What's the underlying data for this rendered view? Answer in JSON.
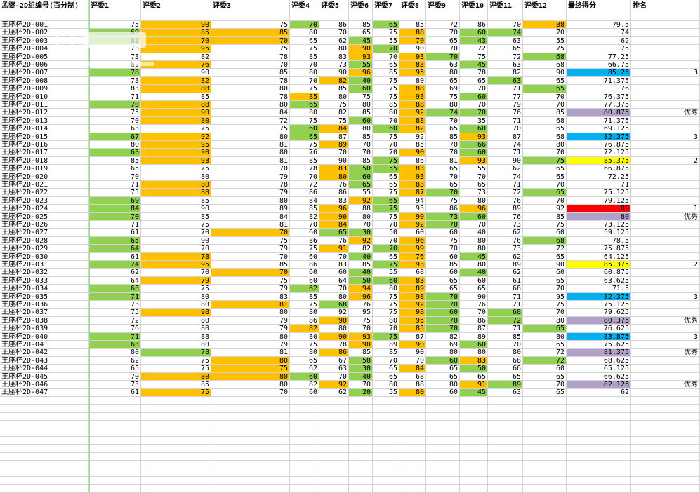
{
  "colors": {
    "orange": "#ffc000",
    "green": "#92d050",
    "blue": "#00b0f0",
    "purple": "#b1a0c7",
    "yellow": "#ffff00",
    "red": "#ff0000",
    "grid": "#d4d4d4"
  },
  "columns": [
    "孟婆-2D组编号(百分制)",
    "评委1",
    "评委2",
    "评委3",
    "评委4",
    "评委5",
    "评委6",
    "评委7",
    "评委8",
    "评委9",
    "评委10",
    "评委11",
    "评委12",
    "最终得分",
    "排名"
  ],
  "rows": [
    {
      "id": "王座杯2D-001",
      "s": [
        75,
        90,
        75,
        70,
        86,
        85,
        65,
        85,
        72,
        86,
        70,
        88
      ],
      "final": "79.5",
      "rank": "",
      "c": {
        "2": "o",
        "4": "g",
        "7": "g",
        "12": "o"
      }
    },
    {
      "id": "王座杯2D-002",
      "s": [
        69,
        85,
        85,
        80,
        70,
        65,
        75,
        88,
        70,
        60,
        74,
        70
      ],
      "final": "74",
      "rank": "",
      "c": {
        "1": "g",
        "2": "o",
        "3": "o",
        "8": "o",
        "10": "g",
        "11": "g"
      }
    },
    {
      "id": "王座杯2D-003",
      "s": [
        68,
        70,
        70,
        65,
        62,
        45,
        55,
        70,
        65,
        43,
        63,
        55
      ],
      "final": "62",
      "rank": "",
      "c": {
        "1": "g",
        "2": "o",
        "3": "o",
        "6": "g",
        "8": "o",
        "10": "g"
      }
    },
    {
      "id": "王座杯2D-004",
      "s": [
        73,
        95,
        75,
        75,
        80,
        90,
        70,
        90,
        70,
        72,
        65,
        75
      ],
      "final": "75",
      "rank": "",
      "c": {
        "2": "o",
        "6": "o",
        "7": "g"
      }
    },
    {
      "id": "王座杯2D-005",
      "s": [
        73,
        82,
        78,
        85,
        83,
        93,
        70,
        93,
        70,
        75,
        72,
        68
      ],
      "final": "77.25",
      "rank": "",
      "c": {
        "6": "o",
        "8": "o",
        "9": "g",
        "12": "g"
      }
    },
    {
      "id": "王座杯2D-006",
      "s": [
        62,
        76,
        70,
        70,
        73,
        55,
        65,
        83,
        63,
        45,
        63,
        68
      ],
      "final": "66.75",
      "rank": "",
      "c": {
        "2": "o",
        "6": "g",
        "8": "o",
        "10": "g"
      }
    },
    {
      "id": "王座杯2D-007",
      "s": [
        78,
        90,
        85,
        80,
        90,
        96,
        85,
        95,
        80,
        78,
        82,
        90
      ],
      "final": "85.25",
      "rank": "3",
      "c": {
        "1": "g",
        "6": "o",
        "8": "o",
        "13": "b"
      }
    },
    {
      "id": "王座杯2D-008",
      "s": [
        73,
        82,
        78,
        70,
        82,
        40,
        75,
        80,
        65,
        65,
        63,
        65
      ],
      "final": "71.375",
      "rank": "",
      "c": {
        "2": "o",
        "5": "o",
        "6": "g",
        "11": "g"
      }
    },
    {
      "id": "王座杯2D-009",
      "s": [
        83,
        88,
        80,
        75,
        85,
        60,
        75,
        88,
        69,
        70,
        71,
        65
      ],
      "final": "76",
      "rank": "",
      "c": {
        "2": "o",
        "6": "g",
        "8": "o",
        "12": "g"
      }
    },
    {
      "id": "王座杯2D-010",
      "s": [
        71,
        85,
        78,
        85,
        80,
        75,
        75,
        93,
        75,
        60,
        77,
        70
      ],
      "final": "76.375",
      "rank": "",
      "c": {
        "4": "o",
        "8": "o",
        "10": "g"
      }
    },
    {
      "id": "王座杯2D-011",
      "s": [
        70,
        88,
        80,
        65,
        75,
        80,
        85,
        88,
        80,
        70,
        79,
        70
      ],
      "final": "77.375",
      "rank": "",
      "c": {
        "1": "g",
        "2": "o",
        "4": "g",
        "8": "o"
      }
    },
    {
      "id": "王座杯2D-012",
      "s": [
        75,
        90,
        84,
        80,
        82,
        85,
        80,
        92,
        74,
        70,
        76,
        85
      ],
      "final": "80.875",
      "rank": "优秀",
      "c": {
        "2": "o",
        "8": "o",
        "9": "g",
        "10": "g",
        "13": "p"
      }
    },
    {
      "id": "王座杯2D-013",
      "s": [
        70,
        80,
        72,
        75,
        75,
        60,
        70,
        88,
        70,
        35,
        71,
        68
      ],
      "final": "71.375",
      "rank": "",
      "c": {
        "2": "o",
        "6": "g",
        "8": "o"
      }
    },
    {
      "id": "王座杯2D-014",
      "s": [
        63,
        75,
        75,
        60,
        84,
        80,
        60,
        82,
        65,
        60,
        70,
        65
      ],
      "final": "69.125",
      "rank": "",
      "c": {
        "4": "g",
        "5": "o",
        "7": "g",
        "8": "o",
        "10": "g"
      }
    },
    {
      "id": "王座杯2D-015",
      "s": [
        67,
        92,
        80,
        65,
        87,
        85,
        75,
        92,
        85,
        93,
        87,
        68
      ],
      "final": "82.375",
      "rank": "3",
      "c": {
        "1": "g",
        "2": "o",
        "4": "g",
        "10": "o",
        "13": "b"
      }
    },
    {
      "id": "王座杯2D-016",
      "s": [
        80,
        95,
        81,
        75,
        89,
        70,
        70,
        85,
        70,
        66,
        74,
        80
      ],
      "final": "76.875",
      "rank": "",
      "c": {
        "2": "o",
        "5": "o",
        "10": "g"
      }
    },
    {
      "id": "王座杯2D-017",
      "s": [
        63,
        90,
        80,
        76,
        70,
        70,
        70,
        90,
        70,
        60,
        71,
        70
      ],
      "final": "72.125",
      "rank": "",
      "c": {
        "1": "g",
        "2": "o",
        "8": "o",
        "10": "g"
      }
    },
    {
      "id": "王座杯2D-018",
      "s": [
        85,
        93,
        81,
        85,
        90,
        85,
        75,
        86,
        81,
        93,
        90,
        75
      ],
      "final": "85.375",
      "rank": "2",
      "c": {
        "2": "o",
        "7": "g",
        "10": "o",
        "12": "g",
        "13": "y"
      }
    },
    {
      "id": "王座杯2D-019",
      "s": [
        65,
        75,
        70,
        78,
        83,
        50,
        55,
        83,
        65,
        55,
        62,
        65
      ],
      "final": "66.875",
      "rank": "",
      "c": {
        "5": "o",
        "6": "g",
        "7": "g",
        "8": "o"
      }
    },
    {
      "id": "王座杯2D-020",
      "s": [
        70,
        80,
        79,
        70,
        80,
        60,
        65,
        93,
        70,
        70,
        74,
        65
      ],
      "final": "72.25",
      "rank": "",
      "c": {
        "5": "o",
        "6": "g",
        "8": "o"
      }
    },
    {
      "id": "王座杯2D-021",
      "s": [
        71,
        80,
        78,
        72,
        76,
        65,
        65,
        83,
        65,
        65,
        71,
        70
      ],
      "final": "71",
      "rank": "",
      "c": {
        "2": "o",
        "6": "g",
        "8": "o"
      }
    },
    {
      "id": "王座杯2D-022",
      "s": [
        75,
        88,
        79,
        86,
        86,
        55,
        75,
        87,
        70,
        73,
        72,
        65
      ],
      "final": "75.125",
      "rank": "",
      "c": {
        "2": "o",
        "8": "o",
        "9": "g",
        "12": "g"
      }
    },
    {
      "id": "王座杯2D-023",
      "s": [
        69,
        85,
        80,
        84,
        83,
        92,
        65,
        94,
        75,
        80,
        76,
        70
      ],
      "final": "79.125",
      "rank": "",
      "c": {
        "1": "g",
        "6": "o",
        "7": "g"
      }
    },
    {
      "id": "王座杯2D-024",
      "s": [
        84,
        90,
        89,
        85,
        96,
        88,
        75,
        93,
        86,
        96,
        89,
        92
      ],
      "final": "89",
      "rank": "1",
      "c": {
        "1": "g",
        "5": "o",
        "7": "g",
        "10": "o",
        "13": "r"
      }
    },
    {
      "id": "王座杯2D-025",
      "s": [
        70,
        85,
        84,
        82,
        90,
        80,
        75,
        90,
        73,
        60,
        76,
        85
      ],
      "final": "80",
      "rank": "优秀",
      "c": {
        "1": "g",
        "5": "o",
        "8": "o",
        "9": "g",
        "10": "g",
        "13": "p"
      }
    },
    {
      "id": "王座杯2D-026",
      "s": [
        71,
        75,
        81,
        70,
        84,
        70,
        70,
        92,
        70,
        70,
        73,
        75
      ],
      "final": "73.125",
      "rank": "",
      "c": {
        "5": "o",
        "8": "o",
        "9": "g"
      }
    },
    {
      "id": "王座杯2D-027",
      "s": [
        61,
        70,
        70,
        60,
        65,
        30,
        50,
        60,
        60,
        40,
        62,
        60
      ],
      "final": "59.125",
      "rank": "",
      "c": {
        "3": "o",
        "5": "g",
        "6": "g"
      }
    },
    {
      "id": "王座杯2D-028",
      "s": [
        65,
        90,
        75,
        86,
        76,
        92,
        70,
        96,
        75,
        80,
        76,
        68
      ],
      "final": "78.5",
      "rank": "",
      "c": {
        "1": "g",
        "6": "o",
        "8": "o",
        "12": "g"
      }
    },
    {
      "id": "王座杯2D-029",
      "s": [
        64,
        70,
        79,
        75,
        91,
        82,
        70,
        99,
        70,
        80,
        73,
        72
      ],
      "final": "75.875",
      "rank": "",
      "c": {
        "1": "g",
        "5": "o",
        "7": "g",
        "8": "o"
      }
    },
    {
      "id": "王座杯2D-030",
      "s": [
        61,
        78,
        70,
        60,
        70,
        40,
        65,
        76,
        60,
        45,
        62,
        65
      ],
      "final": "64.125",
      "rank": "",
      "c": {
        "2": "o",
        "6": "g",
        "8": "o",
        "10": "g"
      }
    },
    {
      "id": "王座杯2D-031",
      "s": [
        74,
        95,
        85,
        86,
        83,
        85,
        75,
        93,
        85,
        80,
        89,
        90
      ],
      "final": "85.375",
      "rank": "2",
      "c": {
        "1": "g",
        "2": "o",
        "7": "g",
        "8": "o",
        "13": "y"
      }
    },
    {
      "id": "王座杯2D-032",
      "s": [
        62,
        70,
        70,
        60,
        60,
        40,
        55,
        68,
        60,
        40,
        62,
        60
      ],
      "final": "60.875",
      "rank": "",
      "c": {
        "3": "o",
        "6": "g",
        "10": "g"
      }
    },
    {
      "id": "王座杯2D-033",
      "s": [
        64,
        79,
        75,
        60,
        64,
        50,
        60,
        83,
        65,
        60,
        61,
        65
      ],
      "final": "63.625",
      "rank": "",
      "c": {
        "2": "o",
        "6": "g",
        "7": "g",
        "8": "o"
      }
    },
    {
      "id": "王座杯2D-034",
      "s": [
        63,
        75,
        79,
        62,
        70,
        94,
        80,
        89,
        65,
        65,
        68,
        70
      ],
      "final": "71.5",
      "rank": "",
      "c": {
        "1": "g",
        "4": "g",
        "6": "o",
        "8": "o"
      }
    },
    {
      "id": "王座杯2D-035",
      "s": [
        71,
        80,
        83,
        85,
        80,
        96,
        75,
        98,
        70,
        90,
        71,
        95
      ],
      "final": "82.375",
      "rank": "3",
      "c": {
        "1": "g",
        "6": "o",
        "8": "o",
        "9": "g",
        "13": "b"
      }
    },
    {
      "id": "王座杯2D-036",
      "s": [
        73,
        80,
        81,
        75,
        68,
        76,
        75,
        92,
        70,
        76,
        71,
        75
      ],
      "final": "75.125",
      "rank": "",
      "c": {
        "3": "o",
        "5": "g",
        "8": "o",
        "9": "g"
      }
    },
    {
      "id": "王座杯2D-037",
      "s": [
        75,
        98,
        80,
        80,
        92,
        95,
        75,
        98,
        60,
        70,
        68,
        70
      ],
      "final": "79.625",
      "rank": "",
      "c": {
        "2": "o",
        "8": "o",
        "9": "g",
        "11": "g"
      }
    },
    {
      "id": "王座杯2D-038",
      "s": [
        72,
        80,
        79,
        86,
        90,
        75,
        80,
        95,
        70,
        86,
        72,
        80
      ],
      "final": "80.375",
      "rank": "优秀",
      "c": {
        "5": "o",
        "8": "o",
        "9": "g",
        "11": "g",
        "13": "p"
      }
    },
    {
      "id": "王座杯2D-039",
      "s": [
        76,
        80,
        79,
        82,
        80,
        70,
        70,
        85,
        70,
        87,
        71,
        65
      ],
      "final": "76.625",
      "rank": "",
      "c": {
        "4": "o",
        "8": "o",
        "9": "g",
        "12": "g"
      }
    },
    {
      "id": "王座杯2D-040",
      "s": [
        71,
        88,
        80,
        80,
        90,
        93,
        75,
        87,
        82,
        89,
        85,
        80
      ],
      "final": "83.875",
      "rank": "3",
      "c": {
        "1": "g",
        "5": "o",
        "6": "o",
        "7": "g",
        "13": "b"
      }
    },
    {
      "id": "王座杯2D-041",
      "s": [
        63,
        80,
        79,
        75,
        78,
        90,
        89,
        90,
        69,
        60,
        70,
        65
      ],
      "final": "75.625",
      "rank": "",
      "c": {
        "1": "g",
        "6": "o",
        "8": "o",
        "10": "g"
      }
    },
    {
      "id": "王座杯2D-042",
      "s": [
        80,
        78,
        81,
        80,
        86,
        85,
        85,
        90,
        80,
        80,
        80,
        72
      ],
      "final": "81.375",
      "rank": "优秀",
      "c": {
        "2": "g",
        "5": "o",
        "13": "p"
      }
    },
    {
      "id": "王座杯2D-043",
      "s": [
        62,
        75,
        80,
        65,
        67,
        50,
        70,
        70,
        60,
        83,
        68,
        72
      ],
      "final": "68.625",
      "rank": "",
      "c": {
        "3": "o",
        "6": "g",
        "9": "g",
        "10": "o",
        "12": "g"
      }
    },
    {
      "id": "王座杯2D-044",
      "s": [
        65,
        75,
        75,
        62,
        63,
        30,
        65,
        84,
        65,
        50,
        66,
        60
      ],
      "final": "65.125",
      "rank": "",
      "c": {
        "3": "o",
        "6": "g",
        "8": "o",
        "10": "g"
      }
    },
    {
      "id": "王座杯2D-045",
      "s": [
        70,
        80,
        80,
        60,
        70,
        40,
        65,
        68,
        65,
        65,
        65,
        65
      ],
      "final": "66.625",
      "rank": "",
      "c": {
        "2": "o",
        "3": "o",
        "4": "g",
        "6": "g"
      }
    },
    {
      "id": "王座杯2D-046",
      "s": [
        73,
        85,
        80,
        82,
        92,
        70,
        80,
        88,
        80,
        91,
        89,
        70
      ],
      "final": "82.125",
      "rank": "优秀",
      "c": {
        "5": "o",
        "10": "o",
        "11": "g",
        "13": "p"
      }
    },
    {
      "id": "王座杯2D-047",
      "s": [
        61,
        75,
        70,
        60,
        62,
        20,
        55,
        80,
        60,
        45,
        63,
        65
      ],
      "final": "62",
      "rank": "",
      "c": {
        "2": "o",
        "6": "g",
        "8": "o",
        "10": "g"
      }
    }
  ]
}
